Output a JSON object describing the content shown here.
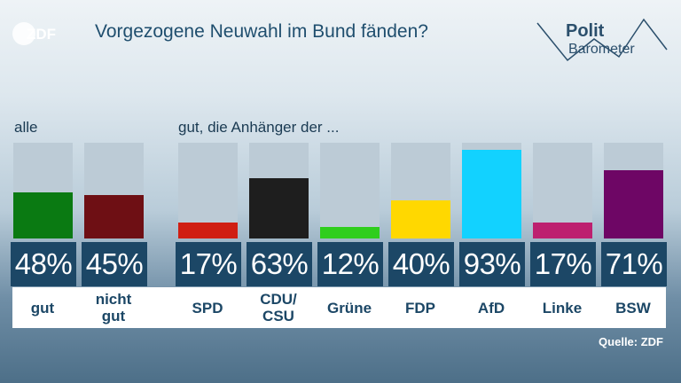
{
  "header": {
    "logo_text": "ZDF",
    "title": "Vorgezogene Neuwahl im Bund fänden?",
    "brand_line1": "Polit",
    "brand_line2": "Barometer"
  },
  "sections": {
    "all_label": "alle",
    "party_label": "gut, die Anhänger der ..."
  },
  "colors": {
    "track": "#bccbd6",
    "value_box": "#1c4766",
    "gut": "#0a7a12",
    "nicht_gut": "#6e0f14",
    "SPD": "#d01e12",
    "CDU/CSU": "#1e1e1e",
    "Grüne": "#2fce1d",
    "FDP": "#ffd800",
    "AfD": "#12d2ff",
    "Linke": "#bd206f",
    "BSW": "#6e0665"
  },
  "chart_data": {
    "type": "bar",
    "groups": [
      {
        "label": "alle",
        "categories": [
          "gut",
          "nicht gut"
        ]
      },
      {
        "label": "gut, die Anhänger der ...",
        "categories": [
          "SPD",
          "CDU/CSU",
          "Grüne",
          "FDP",
          "AfD",
          "Linke",
          "BSW"
        ]
      }
    ],
    "categories": [
      "gut",
      "nicht\ngut",
      "SPD",
      "CDU/\nCSU",
      "Grüne",
      "FDP",
      "AfD",
      "Linke",
      "BSW"
    ],
    "values": [
      48,
      45,
      17,
      63,
      12,
      40,
      93,
      17,
      71
    ],
    "value_labels": [
      "48%",
      "45%",
      "17%",
      "63%",
      "12%",
      "40%",
      "93%",
      "17%",
      "71%"
    ],
    "colors": [
      "#0a7a12",
      "#6e0f14",
      "#d01e12",
      "#1e1e1e",
      "#2fce1d",
      "#ffd800",
      "#12d2ff",
      "#bd206f",
      "#6e0665"
    ],
    "ylim": [
      0,
      100
    ],
    "unit": "%"
  },
  "footer": {
    "source": "Quelle: ZDF"
  }
}
